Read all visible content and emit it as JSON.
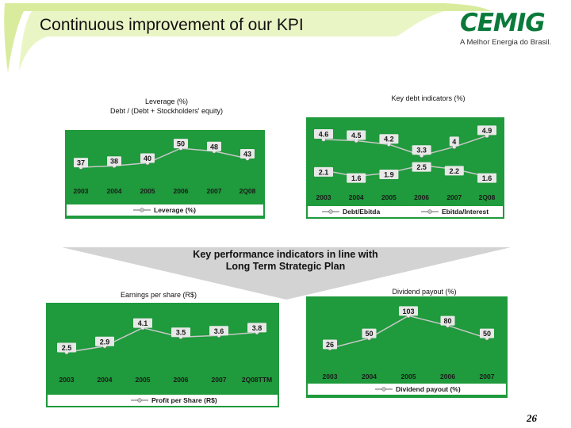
{
  "header": {
    "title": "Continuous improvement of our KPI",
    "logo_word": "CEMIG",
    "logo_tagline": "A Melhor Energia do Brasil."
  },
  "captions": {
    "leverage_line1": "Leverage (%)",
    "leverage_line2": "Debt / (Debt + Stockholders' equity)",
    "debt_indicators": "Key debt indicators (%)",
    "eps": "Earnings per share (R$)",
    "dividend": "Dividend payout (%)"
  },
  "banner": {
    "line1": "Key performance indicators in line with",
    "line2": "Long Term Strategic Plan"
  },
  "page_number": "26",
  "colors": {
    "chart_bg": "#1f9a3c",
    "line": "#c8c8c8",
    "marker": "#e8e8e8",
    "axis_text": "#1a1a1a",
    "brand_green": "#0a7a3a",
    "swoosh": "#d9ec9e"
  },
  "chart_data": [
    {
      "id": "leverage",
      "type": "line",
      "categories": [
        "2003",
        "2004",
        "2005",
        "2006",
        "2007",
        "2Q08"
      ],
      "series": [
        {
          "name": "Leverage (%)",
          "values": [
            37,
            38,
            40,
            50,
            48,
            43
          ]
        }
      ],
      "ylim": [
        30,
        56
      ],
      "legend": "bottom",
      "grid": false
    },
    {
      "id": "debt",
      "type": "line",
      "categories": [
        "2003",
        "2004",
        "2005",
        "2006",
        "2007",
        "2Q08"
      ],
      "series": [
        {
          "name": "Debt/Ebitda",
          "values": [
            2.1,
            1.6,
            1.9,
            2.5,
            2.2,
            1.6
          ]
        },
        {
          "name": "Ebitda/Interest",
          "values": [
            4.6,
            4.5,
            4.2,
            3.3,
            4.0,
            4.9
          ]
        }
      ],
      "ylim": [
        1.0,
        5.5
      ],
      "legend": "bottom",
      "grid": false
    },
    {
      "id": "eps",
      "type": "line",
      "categories": [
        "2003",
        "2004",
        "2005",
        "2006",
        "2007",
        "2Q08TTM"
      ],
      "series": [
        {
          "name": "Profit per Share (R$)",
          "values": [
            2.5,
            2.9,
            4.1,
            3.5,
            3.6,
            3.8
          ]
        }
      ],
      "ylim": [
        1.8,
        4.6
      ],
      "legend": "bottom",
      "grid": false
    },
    {
      "id": "dividend",
      "type": "line",
      "categories": [
        "2003",
        "2004",
        "2005",
        "2006",
        "2007"
      ],
      "series": [
        {
          "name": "Dividend payout (%)",
          "values": [
            26,
            50,
            103,
            80,
            50
          ]
        }
      ],
      "ylim": [
        10,
        115
      ],
      "legend": "bottom",
      "grid": false
    }
  ]
}
